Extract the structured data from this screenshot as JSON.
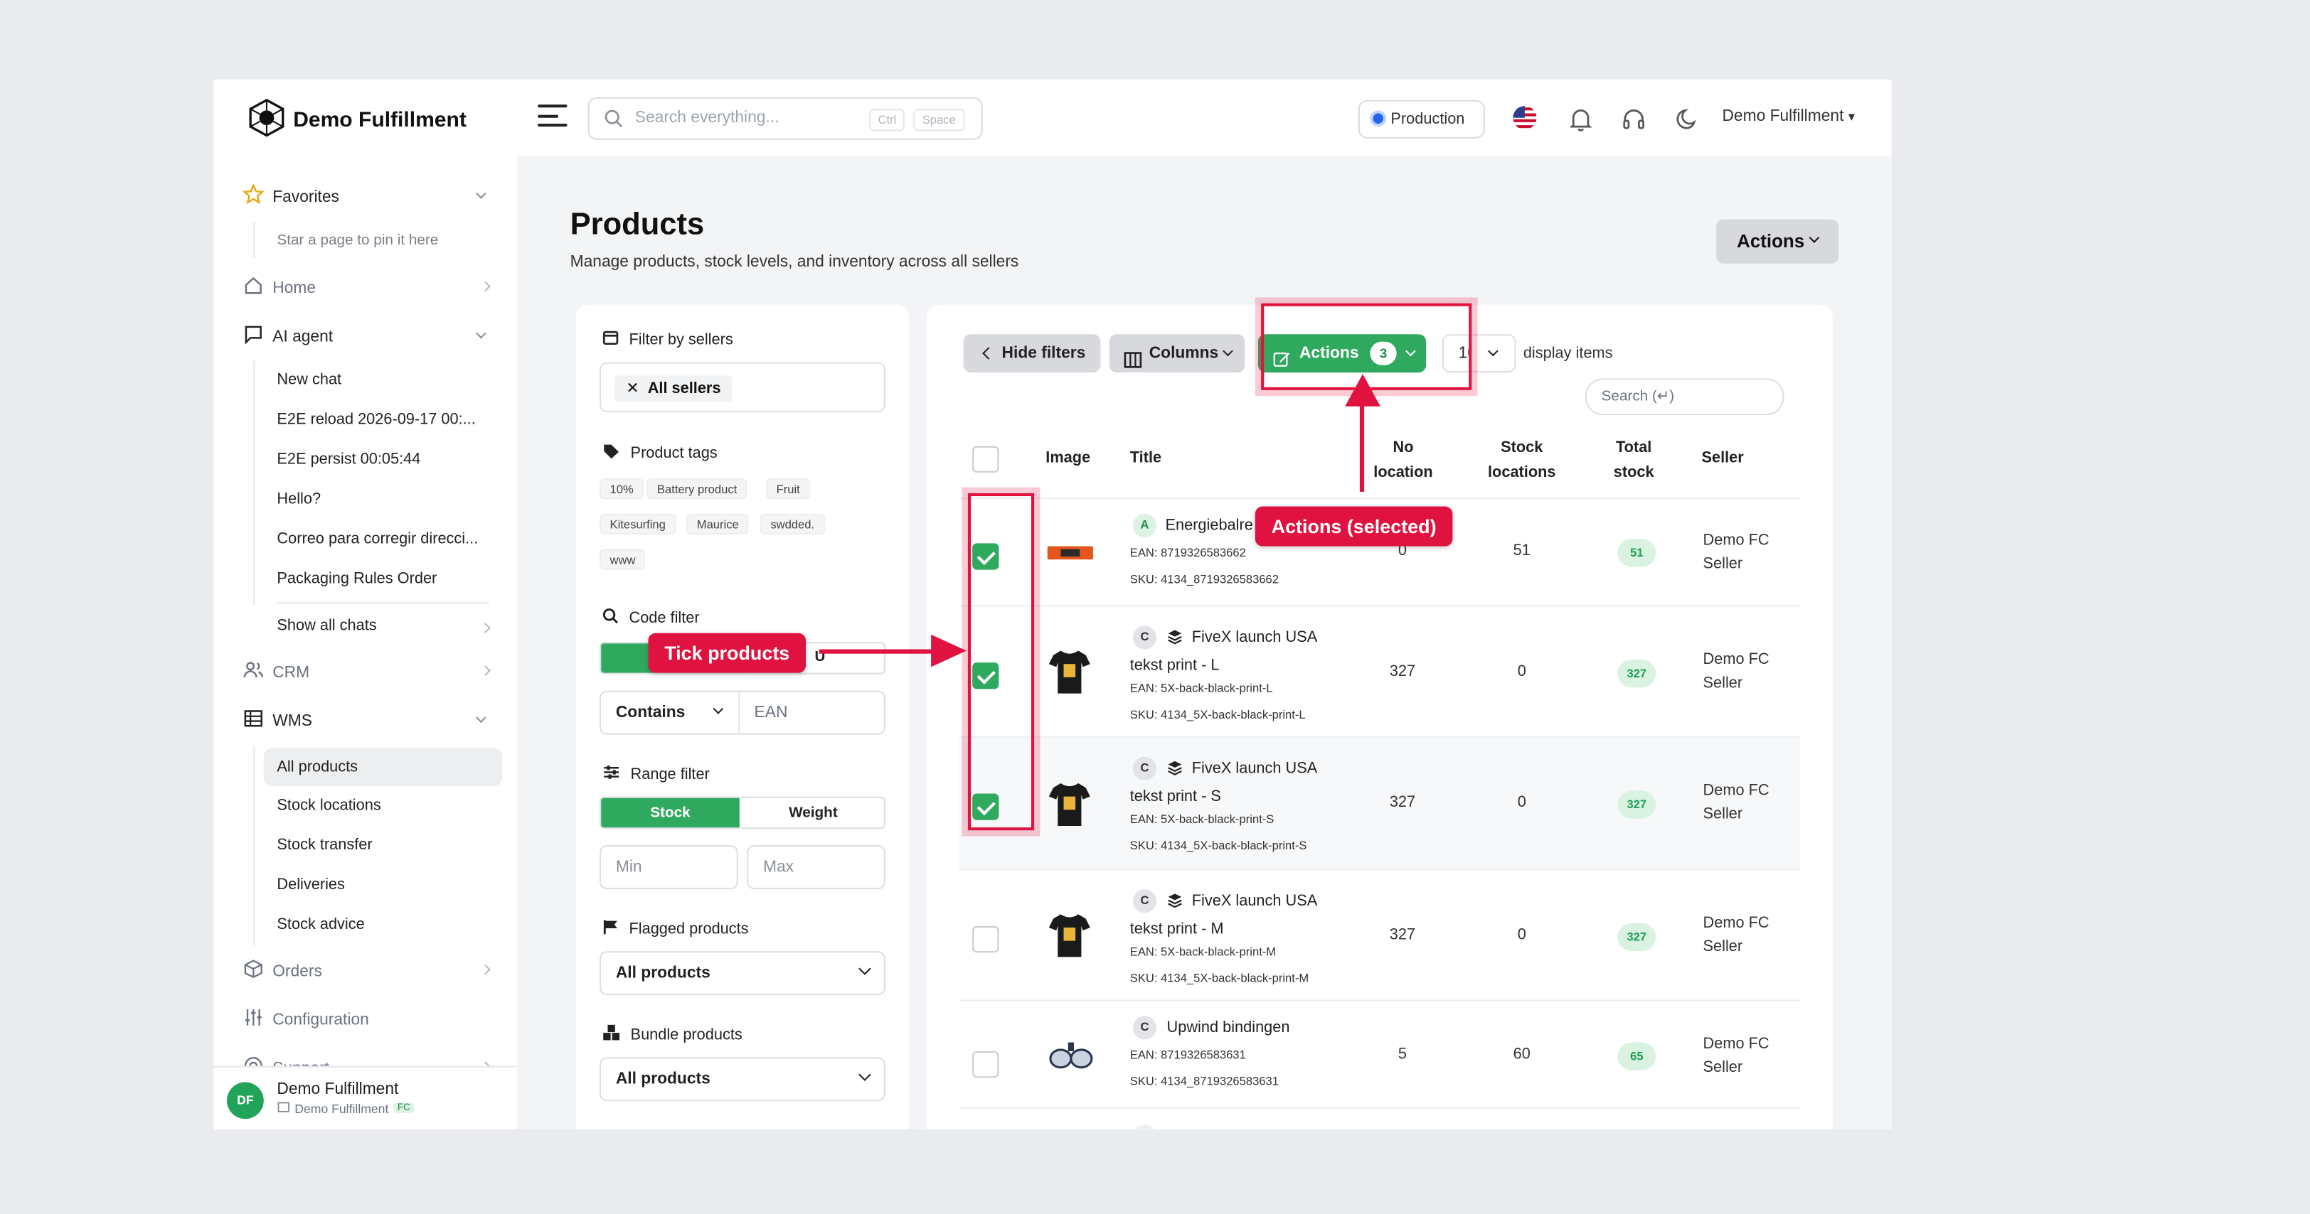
{
  "app": {
    "brand": "Demo Fulfillment"
  },
  "topbar": {
    "search_placeholder": "Search everything...",
    "shortcut_keys": [
      "Ctrl",
      "Space"
    ],
    "environment": "Production",
    "user_menu": "Demo Fulfillment",
    "icons": [
      "menu-icon",
      "search-icon",
      "us-flag-icon",
      "bell-icon",
      "headset-icon",
      "moon-icon"
    ]
  },
  "sidebar": {
    "favorites": {
      "label": "Favorites",
      "hint": "Star a page to pin it here"
    },
    "home": "Home",
    "ai_agent": {
      "label": "AI agent",
      "chats": [
        "New chat",
        "E2E reload 2026-09-17 00:...",
        "E2E persist 00:05:44",
        "Hello?",
        "Correo para corregir direcci...",
        "Packaging Rules Order"
      ],
      "show_all": "Show all chats"
    },
    "crm": "CRM",
    "wms": {
      "label": "WMS",
      "items": [
        "All products",
        "Stock locations",
        "Stock transfer",
        "Deliveries",
        "Stock advice"
      ],
      "selected": "All products"
    },
    "orders": "Orders",
    "configuration": "Configuration",
    "support": "Support",
    "footer": {
      "initials": "DF",
      "name": "Demo Fulfillment",
      "company": "Demo Fulfillment",
      "tag": "FC"
    }
  },
  "page": {
    "title": "Products",
    "subtitle": "Manage products, stock levels, and inventory across all sellers",
    "actions_label": "Actions"
  },
  "filters": {
    "sellers": {
      "label": "Filter by sellers",
      "chip": "All sellers"
    },
    "tags": {
      "label": "Product tags",
      "items": [
        "10%",
        "Battery product",
        "Fruit",
        "Kitesurfing",
        "Maurice",
        "swdded.",
        "www"
      ]
    },
    "code": {
      "label": "Code filter",
      "suffix": "U",
      "mode": "Contains",
      "field": "EAN"
    },
    "range": {
      "label": "Range filter",
      "tabs": [
        "Stock",
        "Weight"
      ],
      "active": "Stock",
      "min_placeholder": "Min",
      "max_placeholder": "Max"
    },
    "flagged": {
      "label": "Flagged products",
      "value": "All products"
    },
    "bundle": {
      "label": "Bundle products",
      "value": "All products"
    }
  },
  "toolbar": {
    "hide_filters": "Hide filters",
    "columns": "Columns",
    "actions": "Actions",
    "selected_count": "3",
    "page_size": "10",
    "display_items": "display items",
    "search_placeholder": "Search (↵)"
  },
  "table": {
    "headers": [
      "Image",
      "Title",
      "No location",
      "Stock locations",
      "Total stock",
      "Seller"
    ],
    "rows": [
      {
        "checked": true,
        "type": "A",
        "bundle": false,
        "title": "Energiebalre",
        "ean": "EAN: 8719326583662",
        "sku": "SKU: 4134_8719326583662",
        "no_location": "0",
        "stock_locations": "51",
        "total_stock": "51",
        "seller": "Demo FC Seller",
        "image": "energy-bar-image"
      },
      {
        "checked": true,
        "type": "C",
        "bundle": true,
        "title": "FiveX launch USA tekst print - L",
        "ean": "EAN: 5X-back-black-print-L",
        "sku": "SKU: 4134_5X-back-black-print-L",
        "no_location": "327",
        "stock_locations": "0",
        "total_stock": "327",
        "seller": "Demo FC Seller",
        "image": "tshirt-image"
      },
      {
        "checked": true,
        "type": "C",
        "bundle": true,
        "title": "FiveX launch USA tekst print - S",
        "ean": "EAN: 5X-back-black-print-S",
        "sku": "SKU: 4134_5X-back-black-print-S",
        "no_location": "327",
        "stock_locations": "0",
        "total_stock": "327",
        "seller": "Demo FC Seller",
        "image": "tshirt-image"
      },
      {
        "checked": false,
        "type": "C",
        "bundle": true,
        "title": "FiveX launch USA tekst print - M",
        "ean": "EAN: 5X-back-black-print-M",
        "sku": "SKU: 4134_5X-back-black-print-M",
        "no_location": "327",
        "stock_locations": "0",
        "total_stock": "327",
        "seller": "Demo FC Seller",
        "image": "tshirt-image"
      },
      {
        "checked": false,
        "type": "C",
        "bundle": false,
        "title": "Upwind bindingen",
        "ean": "EAN: 8719326583631",
        "sku": "SKU: 4134_8719326583631",
        "no_location": "5",
        "stock_locations": "60",
        "total_stock": "65",
        "seller": "Demo FC Seller",
        "image": "bindings-image"
      }
    ]
  },
  "annotations": {
    "tick": "Tick products",
    "actions": "Actions (selected)",
    "color": "#e0123f"
  }
}
